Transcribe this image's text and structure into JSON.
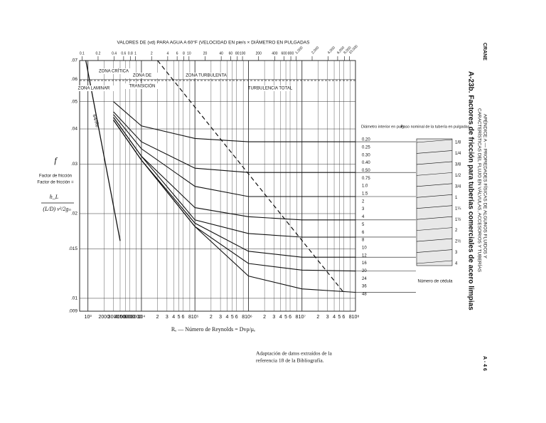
{
  "chart_data": {
    "type": "line",
    "title": "VALORES DE (vd) PARA AGUA A 60°F (VELOCIDAD EN pie/s × DIÁMETRO EN PULGADAS",
    "xlabel": "Rₑ — Número de Reynolds = Dvρ/μₑ",
    "ylabel": "f",
    "ylabel2": "Factor de fricción",
    "log_x": true,
    "log_y": true,
    "grid": true,
    "xlim": [
      700,
      100000000
    ],
    "ylim": [
      0.009,
      0.07
    ],
    "xticks": [
      {
        "value": 1000,
        "label": "10³"
      },
      2000,
      3000,
      4000,
      5000,
      6000,
      8000,
      {
        "value": 10000,
        "label": "10⁴"
      },
      {
        "value": 20000,
        "label": "2"
      },
      {
        "value": 30000,
        "label": "3"
      },
      {
        "value": 40000,
        "label": "4"
      },
      {
        "value": 50000,
        "label": "5"
      },
      {
        "value": 60000,
        "label": "6"
      },
      {
        "value": 80000,
        "label": "8"
      },
      {
        "value": 100000,
        "label": "10⁵"
      },
      {
        "value": 200000,
        "label": "2"
      },
      {
        "value": 300000,
        "label": "3"
      },
      {
        "value": 400000,
        "label": "4"
      },
      {
        "value": 500000,
        "label": "5"
      },
      {
        "value": 600000,
        "label": "6"
      },
      {
        "value": 800000,
        "label": "8"
      },
      {
        "value": 1000000,
        "label": "10⁶"
      },
      {
        "value": 2000000,
        "label": "2"
      },
      {
        "value": 3000000,
        "label": "3"
      },
      {
        "value": 4000000,
        "label": "4"
      },
      {
        "value": 5000000,
        "label": "5"
      },
      {
        "value": 6000000,
        "label": "6"
      },
      {
        "value": 8000000,
        "label": "8"
      },
      {
        "value": 10000000,
        "label": "10⁷"
      },
      {
        "value": 20000000,
        "label": "2"
      },
      {
        "value": 30000000,
        "label": "3"
      },
      {
        "value": 40000000,
        "label": "4"
      },
      {
        "value": 50000000,
        "label": "5"
      },
      {
        "value": 60000000,
        "label": "6"
      },
      {
        "value": 80000000,
        "label": "8"
      },
      {
        "value": 100000000,
        "label": "10⁸"
      }
    ],
    "yticks": [
      {
        "value": 0.07,
        "label": ".07"
      },
      {
        "value": 0.06,
        "label": ".06"
      },
      {
        "value": 0.05,
        "label": ".05"
      },
      {
        "value": 0.04,
        "label": ".04"
      },
      {
        "value": 0.03,
        "label": ".03"
      },
      {
        "value": 0.02,
        "label": ".02"
      },
      {
        "value": 0.015,
        "label": ".015"
      },
      {
        "value": 0.01,
        "label": ".01"
      },
      {
        "value": 0.009,
        "label": ".009"
      }
    ],
    "x2lim": [
      0.0904,
      12920
    ],
    "x2ticks": [
      {
        "value": 0.1,
        "label": "0.1"
      },
      {
        "value": 0.2,
        "label": "0.2"
      },
      {
        "value": 0.4,
        "label": "0.4"
      },
      {
        "value": 0.6,
        "label": "0.6"
      },
      {
        "value": 0.8,
        "label": "0.8"
      },
      1,
      2,
      4,
      6,
      8,
      10,
      20,
      40,
      60,
      80,
      100,
      200,
      400,
      600,
      800,
      {
        "value": 1000,
        "label": "1,000"
      },
      {
        "value": 2000,
        "label": "2,000"
      },
      {
        "value": 4000,
        "label": "4,000"
      },
      {
        "value": 6000,
        "label": "6,000"
      },
      {
        "value": 8000,
        "label": "8,000"
      },
      {
        "value": 10000,
        "label": "10,000"
      }
    ],
    "x": [
      3000,
      10000,
      100000,
      1000000,
      10000000,
      100000000
    ],
    "series": [
      {
        "name": "0.20",
        "color": "#111",
        "values": [
          0.05,
          0.041,
          0.037,
          0.036,
          0.036,
          0.036
        ]
      },
      {
        "name": "0.50",
        "color": "#111",
        "values": [
          0.046,
          0.036,
          0.029,
          0.028,
          0.028,
          0.028
        ]
      },
      {
        "name": "1.0",
        "color": "#111",
        "values": [
          0.045,
          0.034,
          0.025,
          0.023,
          0.023,
          0.023
        ]
      },
      {
        "name": "2",
        "color": "#111",
        "values": [
          0.044,
          0.032,
          0.021,
          0.0195,
          0.019,
          0.019
        ]
      },
      {
        "name": "4",
        "color": "#111",
        "values": [
          0.044,
          0.032,
          0.019,
          0.017,
          0.0165,
          0.0165
        ]
      },
      {
        "name": "8",
        "color": "#111",
        "values": [
          0.043,
          0.031,
          0.0185,
          0.0147,
          0.014,
          0.014
        ]
      },
      {
        "name": "16",
        "color": "#111",
        "values": [
          0.043,
          0.031,
          0.018,
          0.0133,
          0.0126,
          0.0125
        ]
      },
      {
        "name": "48",
        "color": "#111",
        "values": [
          0.043,
          0.031,
          0.018,
          0.012,
          0.0108,
          0.0105
        ]
      }
    ],
    "laminar": {
      "name": "64/Re",
      "color": "#111",
      "x": [
        914,
        2000,
        4000
      ],
      "values": [
        0.07,
        0.032,
        0.016
      ]
    },
    "annotations": [
      "ZONA CRÍTICA",
      "ZONA DE",
      "ZONA TURBULENTA",
      "ZONA LAMINAR",
      "TRANSICIÓN",
      "TURBULENCIA TOTAL"
    ],
    "formula": {
      "lhs": "Factor de fricción =",
      "num": "h_L",
      "den": "(L/D) v²/2gₙ"
    }
  },
  "right_panel": {
    "title": "Diámetro interior en pulg",
    "labels": [
      "0.20",
      "0.25",
      "0.30",
      "0.40",
      "0.50",
      "0.75",
      "1.0",
      "1.5",
      "2",
      "3",
      "4",
      "5",
      "6",
      "8",
      "10",
      "12",
      "16",
      "20",
      "24",
      "36",
      "48"
    ],
    "nominal_title": "Paso nominal de la tubería en pulgadas",
    "nominal": [
      "1/8",
      "1/4",
      "3/8",
      "1/2",
      "3/4",
      "1",
      "1¼",
      "1½",
      "2",
      "2½",
      "3",
      "4"
    ],
    "schedule_title": "Número de cédula"
  },
  "page": {
    "brand": "CRANE",
    "appendix": "APÉNDICE A — PROPIEDADES FÍSICAS DE ALGUNOS FLUIDOS Y",
    "appendix2": "CARACTERÍSTICAS DEL FLUJO EN VÁLVULAS, ACCESORIOS Y TUBERÍAS",
    "heading": "A-23b. Factores de fricción para tuberías comerciales de acero limpias",
    "page_number": "A - 4 6",
    "source": "Adaptación de datos extraídos de la",
    "source2": "referencia 18 de la Bibliografía."
  }
}
